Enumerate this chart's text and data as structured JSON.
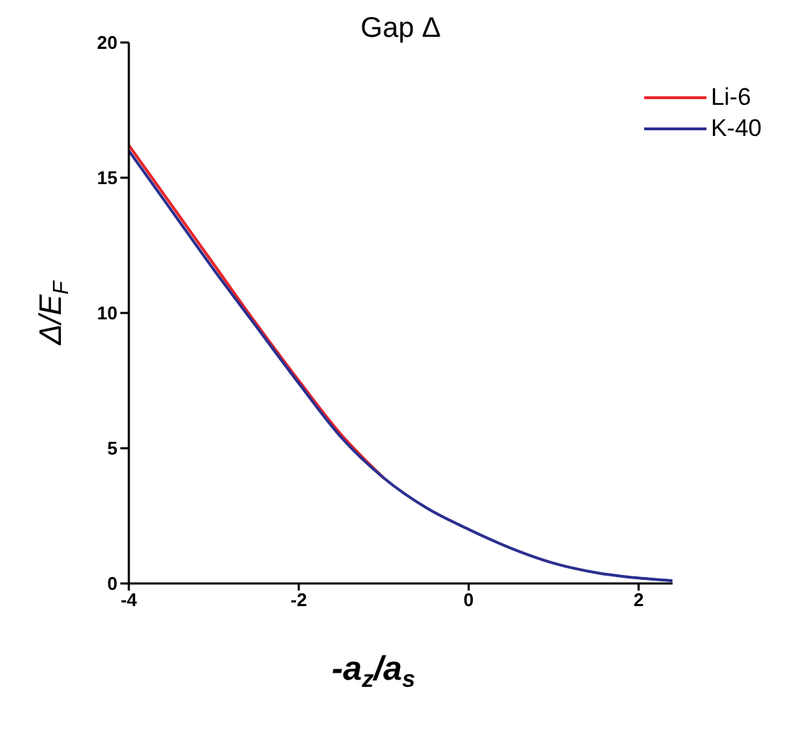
{
  "chart_data": {
    "type": "line",
    "title": "Gap Δ",
    "xlabel": "-a$_{z}$/a$_{s}$",
    "ylabel": "Δ/E$_{F}$",
    "x": [
      -4,
      -3.5,
      -3,
      -2.5,
      -2,
      -1.5,
      -1,
      -0.5,
      0,
      0.5,
      1,
      1.5,
      2,
      2.4
    ],
    "series": [
      {
        "name": "Li-6",
        "color": "#e8262a",
        "values": [
          16.2,
          14.0,
          11.8,
          9.6,
          7.5,
          5.5,
          3.9,
          null,
          null,
          null,
          null,
          null,
          null,
          null
        ]
      },
      {
        "name": "K-40",
        "color": "#2b2f8f",
        "values": [
          16.0,
          13.8,
          11.6,
          9.5,
          7.4,
          5.4,
          3.9,
          2.8,
          2.0,
          1.3,
          0.75,
          0.4,
          0.2,
          0.1
        ]
      }
    ],
    "xlim": [
      -4,
      2.4
    ],
    "xticks": [
      -4,
      -2,
      0,
      2
    ],
    "ylim": [
      0,
      20
    ],
    "yticks": [
      0,
      5,
      10,
      15,
      20
    ],
    "grid": false,
    "legend": "top right",
    "marker": "none",
    "line_style": "solid"
  }
}
